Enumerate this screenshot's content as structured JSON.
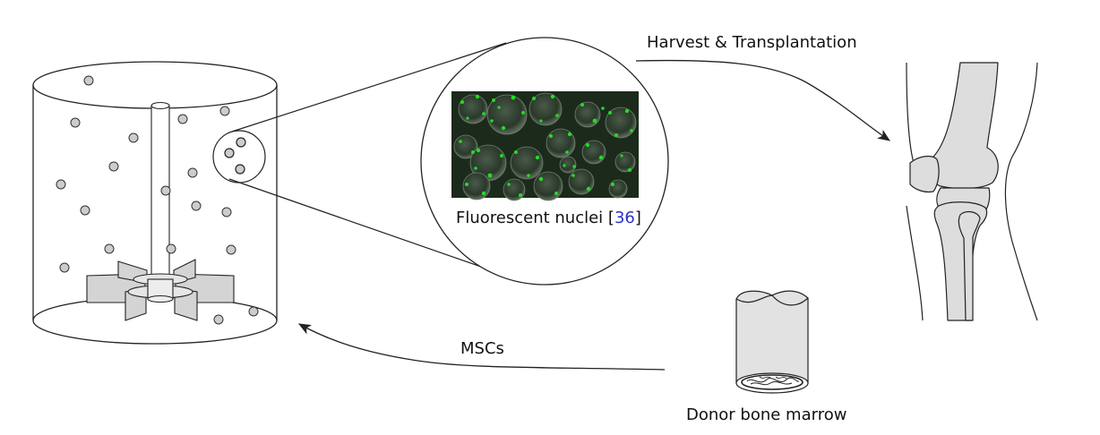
{
  "labels": {
    "harvest": "Harvest & Transplantation",
    "fluorescent_text": "Fluorescent nuclei",
    "fluorescent_ref": "36",
    "mscs": "MSCs",
    "donor": "Donor bone marrow"
  },
  "colors": {
    "stroke": "#222222",
    "cell_fill": "#cccccc",
    "bone_fill": "#dddddd",
    "impeller_fill": "#d4d4d4",
    "micrograph_bg": "#1c2a1c",
    "nuclei": "#22dd22",
    "citation": "#2f2fbf"
  },
  "icons": [
    "bioreactor-vessel",
    "impeller-icon",
    "magnifier-circle",
    "knee-joint-icon",
    "bone-sample-icon",
    "arrow-icon"
  ]
}
